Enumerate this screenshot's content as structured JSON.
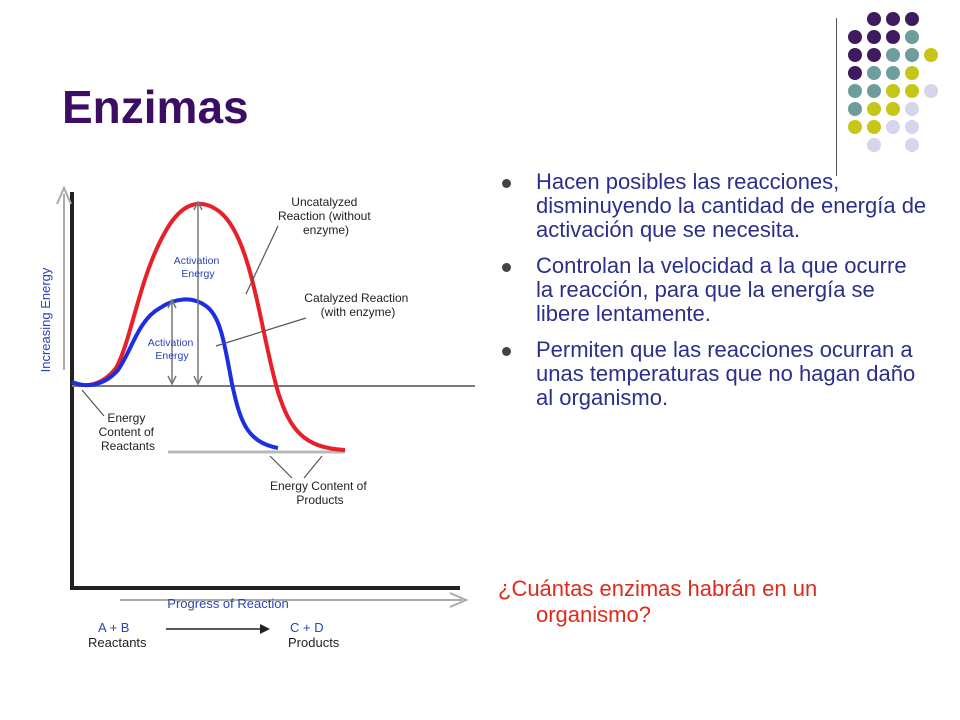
{
  "title": "Enzimas",
  "bullets": [
    "Hacen posibles las reacciones, disminuyendo la cantidad de energía de activación que se necesita.",
    "Controlan la velocidad a la que ocurre la reacción, para que la energía se libere lentamente.",
    "Permiten que las reacciones ocurran a unas temperaturas que no hagan daño al organismo."
  ],
  "question": {
    "line1": "¿Cuántas enzimas habrán en un",
    "line2": "organismo?"
  },
  "diagram": {
    "y_axis_label": "Increasing Energy",
    "x_axis_label": "Progress of Reaction",
    "uncatalyzed_label": [
      "Uncatalyzed",
      "Reaction (without",
      "enzyme)"
    ],
    "catalyzed_label": [
      "Catalyzed Reaction",
      "(with enzyme)"
    ],
    "activation_energy_label": [
      "Activation",
      "Energy"
    ],
    "reactants_label": [
      "Energy",
      "Content of",
      "Reactants"
    ],
    "products_label": [
      "Energy Content of",
      "Products"
    ],
    "equation_left": "A  +  B",
    "equation_right": "C  +  D",
    "reactants_caption": "Reactants",
    "products_caption": "Products",
    "colors": {
      "uncatalyzed": "#e8202a",
      "catalyzed": "#1c2ee0",
      "axis_text": "#2b43b8",
      "baseline": "#7a7a7a"
    }
  },
  "decoration": {
    "dot_colors": {
      "purple": "#3d1b5e",
      "teal": "#6f9c9c",
      "lime": "#c6c619",
      "lavender": "#d5d5ec"
    }
  }
}
